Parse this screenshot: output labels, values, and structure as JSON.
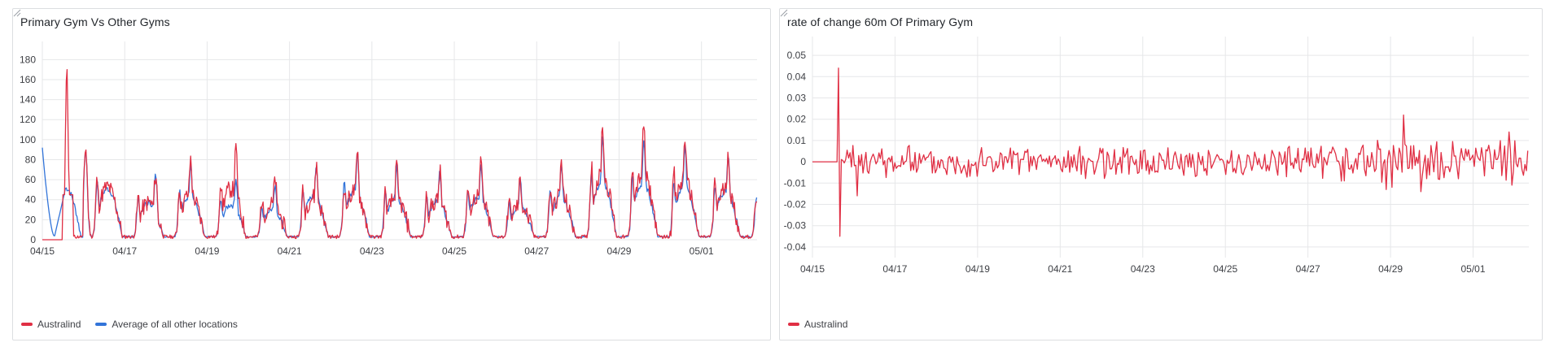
{
  "colors": {
    "australind": "#e02f44",
    "average": "#3274d9",
    "grid": "#e6e7e9"
  },
  "chart_data": [
    {
      "type": "line",
      "title": "Primary Gym Vs Other Gyms",
      "ylim": [
        0,
        190
      ],
      "yticks": [
        0,
        20,
        40,
        60,
        80,
        100,
        120,
        140,
        160,
        180
      ],
      "xticks": [
        "04/15",
        "04/17",
        "04/19",
        "04/21",
        "04/23",
        "04/25",
        "04/27",
        "04/29",
        "05/01"
      ],
      "x_start": "04/15 00:00",
      "x_end": "05/02 08:00",
      "legend_position": "bottom-left",
      "series": [
        {
          "name": "Australind",
          "color": "#e02f44",
          "peaks": [
            [
              0.45,
              0
            ],
            [
              0.6,
              170
            ],
            [
              1.05,
              90
            ],
            [
              1.8,
              77
            ],
            [
              2.75,
              62
            ],
            [
              3.6,
              78
            ],
            [
              4.7,
              87
            ],
            [
              5.65,
              59
            ],
            [
              6.65,
              72
            ],
            [
              7.65,
              83
            ],
            [
              8.6,
              70
            ],
            [
              9.65,
              65
            ],
            [
              10.65,
              74
            ],
            [
              11.6,
              57
            ],
            [
              12.6,
              75
            ],
            [
              13.6,
              112
            ],
            [
              14.6,
              113
            ],
            [
              15.6,
              101
            ],
            [
              16.65,
              86
            ]
          ]
        },
        {
          "name": "Average of all other locations",
          "color": "#3274d9",
          "peaks": [
            [
              0.0,
              88
            ],
            [
              0.25,
              5
            ],
            [
              1.05,
              87
            ],
            [
              1.8,
              77
            ],
            [
              2.75,
              62
            ],
            [
              3.6,
              74
            ],
            [
              4.7,
              58
            ],
            [
              5.65,
              50
            ],
            [
              6.65,
              73
            ],
            [
              7.65,
              84
            ],
            [
              8.6,
              71
            ],
            [
              9.65,
              65
            ],
            [
              10.65,
              71
            ],
            [
              11.6,
              56
            ],
            [
              12.6,
              72
            ],
            [
              13.6,
              98
            ],
            [
              14.6,
              96
            ],
            [
              15.6,
              90
            ],
            [
              16.65,
              82
            ]
          ]
        }
      ]
    },
    {
      "type": "line",
      "title": "rate of change 60m Of Primary Gym",
      "ylim": [
        -0.045,
        0.055
      ],
      "yticks": [
        0.05,
        0.04,
        0.03,
        0.02,
        0.01,
        0,
        -0.01,
        -0.02,
        -0.03,
        -0.04
      ],
      "xticks": [
        "04/15",
        "04/17",
        "04/19",
        "04/21",
        "04/23",
        "04/25",
        "04/27",
        "04/29",
        "05/01"
      ],
      "x_start": "04/15 00:00",
      "x_end": "05/02 08:00",
      "legend_position": "bottom-left",
      "series": [
        {
          "name": "Australind",
          "color": "#e02f44",
          "spikes": [
            [
              0.62,
              0.044
            ],
            [
              0.68,
              -0.035
            ],
            [
              1.1,
              -0.016
            ],
            [
              14.3,
              0.022
            ],
            [
              13.9,
              -0.013
            ],
            [
              14.05,
              -0.012
            ],
            [
              14.75,
              -0.014
            ],
            [
              16.88,
              0.014
            ],
            [
              16.95,
              -0.011
            ]
          ]
        }
      ]
    }
  ]
}
